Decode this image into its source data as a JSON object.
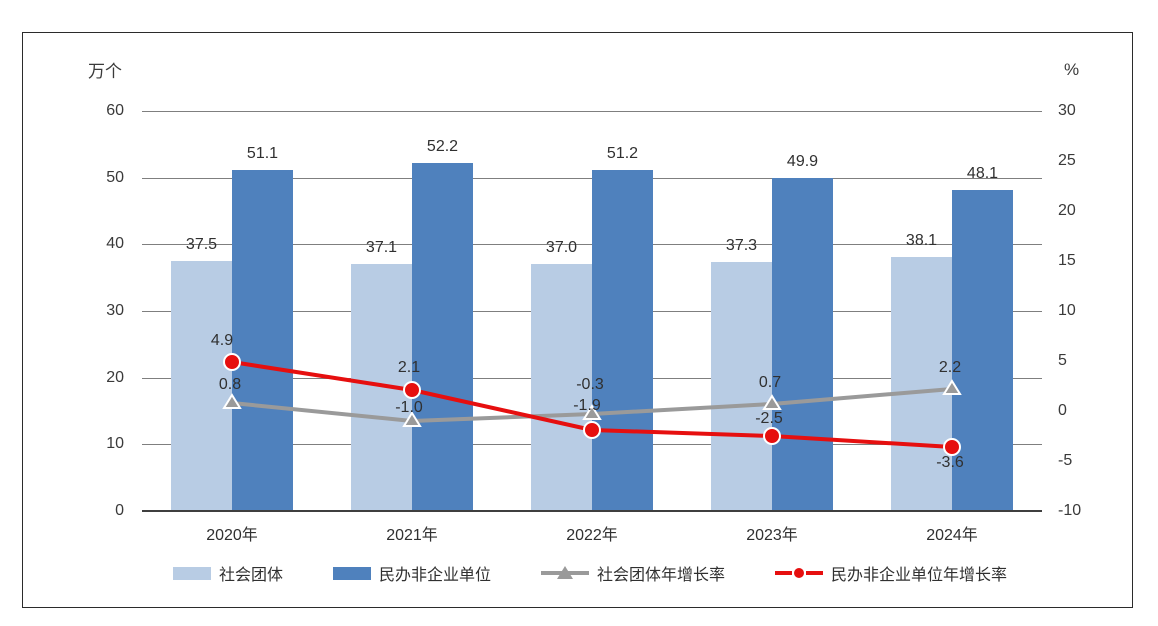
{
  "chart_data": {
    "type": "combo-bar-line",
    "categories": [
      "2020年",
      "2021年",
      "2022年",
      "2023年",
      "2024年"
    ],
    "left_axis": {
      "title": "万个",
      "min": 0,
      "max": 60,
      "tick_labels": [
        "60",
        "50",
        "40",
        "30",
        "20",
        "10",
        "0"
      ]
    },
    "right_axis": {
      "title": "%",
      "min": -10,
      "max": 30,
      "tick_labels": [
        "30",
        "25",
        "20",
        "15",
        "10",
        "5",
        "0",
        "-5",
        "-10"
      ]
    },
    "bar_series": [
      {
        "name": "社会团体",
        "color": "#b8cce4",
        "values": [
          37.5,
          37.1,
          37.0,
          37.3,
          38.1
        ]
      },
      {
        "name": "民办非企业单位",
        "color": "#4f81bd",
        "values": [
          51.1,
          52.2,
          51.2,
          49.9,
          48.1
        ]
      }
    ],
    "line_series": [
      {
        "name": "社会团体年增长率",
        "color": "#9a9a9a",
        "marker": "triangle",
        "values": [
          0.8,
          -1.0,
          -0.3,
          0.7,
          2.2
        ]
      },
      {
        "name": "民办非企业单位年增长率",
        "color": "#e60f0f",
        "marker": "circle",
        "values": [
          4.9,
          2.1,
          -1.9,
          -2.5,
          -3.6
        ]
      }
    ],
    "legend": [
      {
        "label": "社会团体",
        "swatch": "rect",
        "color": "#b8cce4"
      },
      {
        "label": "民办非企业单位",
        "swatch": "rect",
        "color": "#4f81bd"
      },
      {
        "label": "社会团体年增长率",
        "swatch": "line-triangle",
        "color": "#9a9a9a"
      },
      {
        "label": "民办非企业单位年增长率",
        "swatch": "line-circle",
        "color": "#e60f0f"
      }
    ],
    "grid": true,
    "legend_position": "bottom"
  }
}
